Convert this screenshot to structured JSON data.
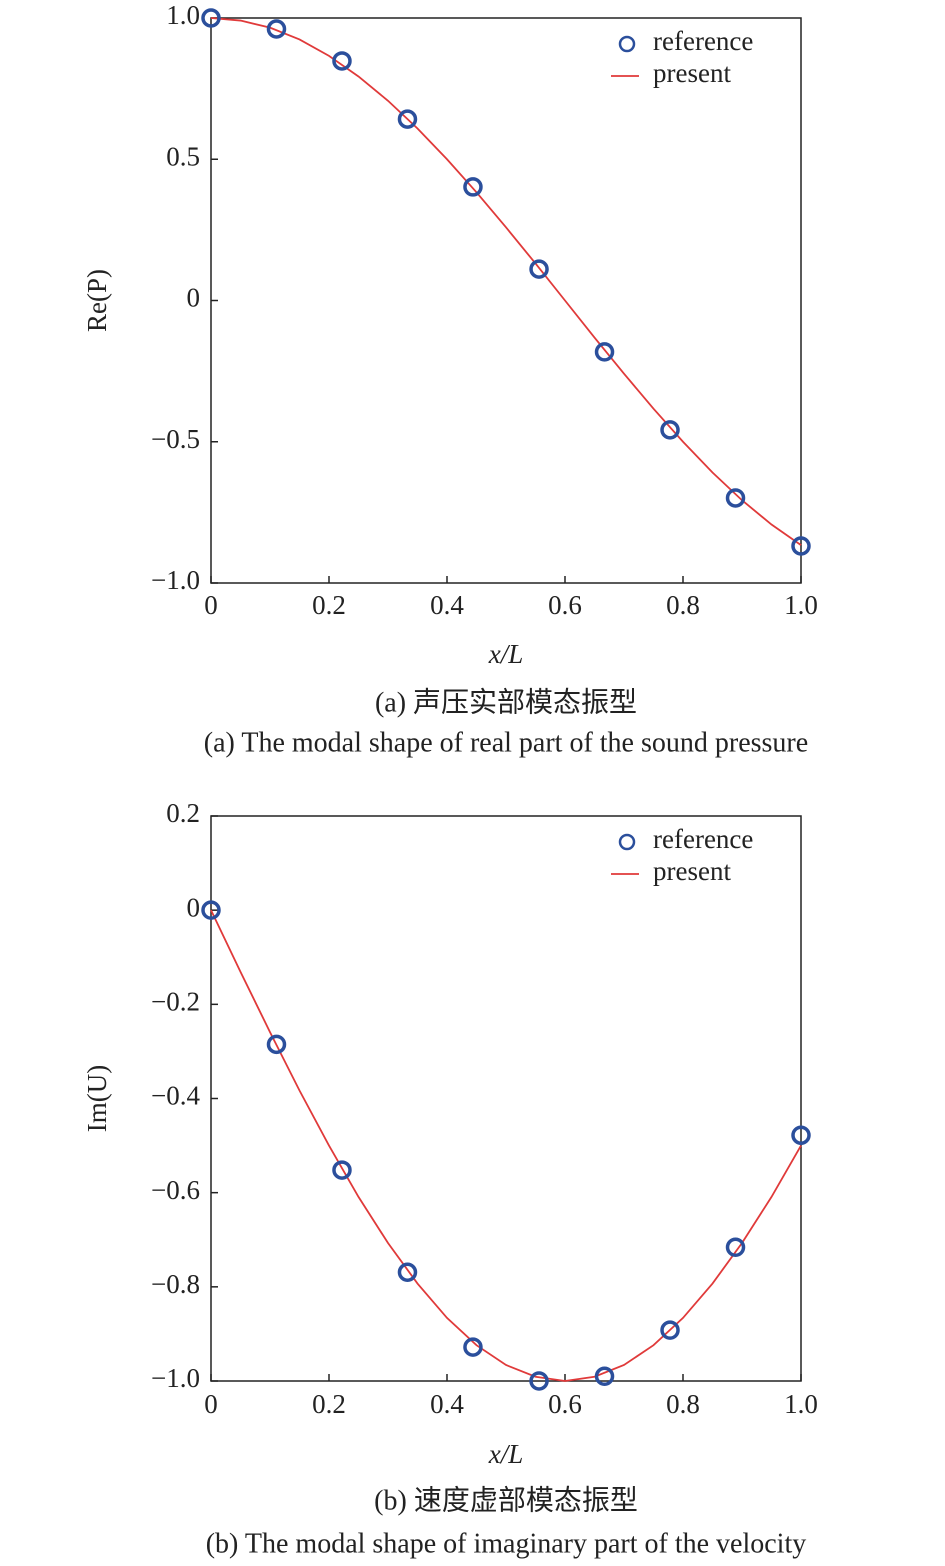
{
  "chart_data": [
    {
      "type": "line",
      "title": "(a) 声压实部模态振型",
      "subtitle": "(a) The modal shape of real part of the sound pressure",
      "xlabel": "x/L",
      "ylabel": "Re(P)",
      "xlim": [
        0,
        1
      ],
      "ylim": [
        -1,
        1
      ],
      "xticks": [
        0,
        0.2,
        0.4,
        0.6,
        0.8,
        {
          "value": 1,
          "label": "1.0"
        }
      ],
      "yticks": [
        {
          "value": -1,
          "label": "−1.0"
        },
        {
          "value": -0.5,
          "label": "−0.5"
        },
        0,
        0.5,
        {
          "value": 1,
          "label": "1.0"
        }
      ],
      "legend": "upper right",
      "series": [
        {
          "name": "reference",
          "style": "marker",
          "color": "#2b4f9c",
          "x": [
            0,
            0.111,
            0.222,
            0.333,
            0.444,
            0.556,
            0.667,
            0.778,
            0.889,
            1
          ],
          "values": [
            1.0,
            0.961,
            0.848,
            0.642,
            0.402,
            0.111,
            -0.182,
            -0.458,
            -0.699,
            -0.869
          ]
        },
        {
          "name": "present",
          "style": "line",
          "color": "#e03a3a",
          "x": [
            0,
            0.05,
            0.1,
            0.15,
            0.2,
            0.25,
            0.3,
            0.35,
            0.4,
            0.45,
            0.5,
            0.55,
            0.6,
            0.65,
            0.7,
            0.75,
            0.8,
            0.85,
            0.9,
            0.95,
            1
          ],
          "values": [
            1,
            0.991,
            0.966,
            0.924,
            0.866,
            0.793,
            0.707,
            0.609,
            0.5,
            0.383,
            0.259,
            0.131,
            0,
            -0.131,
            -0.259,
            -0.383,
            -0.5,
            -0.609,
            -0.707,
            -0.793,
            -0.866
          ]
        }
      ]
    },
    {
      "type": "line",
      "title": "(b) 速度虚部模态振型",
      "subtitle": "(b) The modal shape of imaginary part of the velocity",
      "xlabel": "x/L",
      "ylabel": "Im(U)",
      "xlim": [
        0,
        1
      ],
      "ylim": [
        -1,
        0.2
      ],
      "xticks": [
        0,
        0.2,
        0.4,
        0.6,
        0.8,
        {
          "value": 1,
          "label": "1.0"
        }
      ],
      "yticks": [
        {
          "value": -1,
          "label": "−1.0"
        },
        {
          "value": -0.8,
          "label": "−0.8"
        },
        {
          "value": -0.6,
          "label": "−0.6"
        },
        {
          "value": -0.4,
          "label": "−0.4"
        },
        {
          "value": -0.2,
          "label": "−0.2"
        },
        0,
        0.2
      ],
      "legend": "upper right",
      "series": [
        {
          "name": "reference",
          "style": "marker",
          "color": "#2b4f9c",
          "x": [
            0,
            0.111,
            0.222,
            0.333,
            0.444,
            0.556,
            0.667,
            0.778,
            0.889,
            1
          ],
          "values": [
            0,
            -0.285,
            -0.552,
            -0.769,
            -0.928,
            -1.0,
            -0.99,
            -0.892,
            -0.716,
            -0.478
          ]
        },
        {
          "name": "present",
          "style": "line",
          "color": "#e03a3a",
          "x": [
            0,
            0.05,
            0.1,
            0.15,
            0.2,
            0.25,
            0.3,
            0.35,
            0.4,
            0.45,
            0.5,
            0.55,
            0.6,
            0.65,
            0.7,
            0.75,
            0.8,
            0.85,
            0.9,
            0.95,
            1
          ],
          "values": [
            0,
            -0.131,
            -0.259,
            -0.383,
            -0.5,
            -0.609,
            -0.707,
            -0.793,
            -0.866,
            -0.924,
            -0.966,
            -0.991,
            -1,
            -0.991,
            -0.966,
            -0.924,
            -0.866,
            -0.793,
            -0.707,
            -0.609,
            -0.5
          ]
        }
      ]
    }
  ]
}
